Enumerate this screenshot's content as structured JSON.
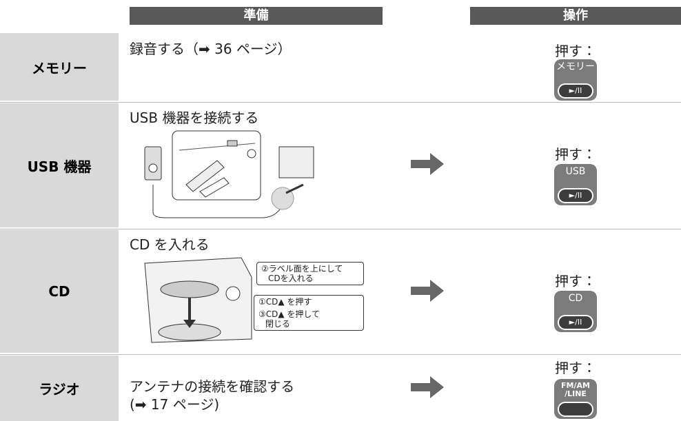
{
  "header": {
    "prep": "準備",
    "op": "操作"
  },
  "rows": [
    {
      "label": "メモリー",
      "prep": [
        "録音する（➡ 36 ページ）"
      ],
      "action": "押す：",
      "button": "メモリー",
      "play": "►/II"
    },
    {
      "label": "USB 機器",
      "prep": [
        "USB 機器を接続する"
      ],
      "action": "押す：",
      "button": "USB",
      "play": "►/II"
    },
    {
      "label": "CD",
      "prep": [
        "CD を入れる"
      ],
      "action": "押す：",
      "button": "CD",
      "play": "►/II"
    },
    {
      "label": "ラジオ",
      "prep": [
        "アンテナの接続を確認する",
        "(➡ 17 ページ)"
      ],
      "action": "押す：",
      "button": "FM/AM /LINE",
      "play": ""
    }
  ],
  "cd_captions": {
    "insert": [
      "②ラベル面を上にして",
      "CDを入れる"
    ],
    "open": "①CD▲ を押す",
    "close": [
      "③CD▲ を押して",
      "閉じる"
    ]
  }
}
